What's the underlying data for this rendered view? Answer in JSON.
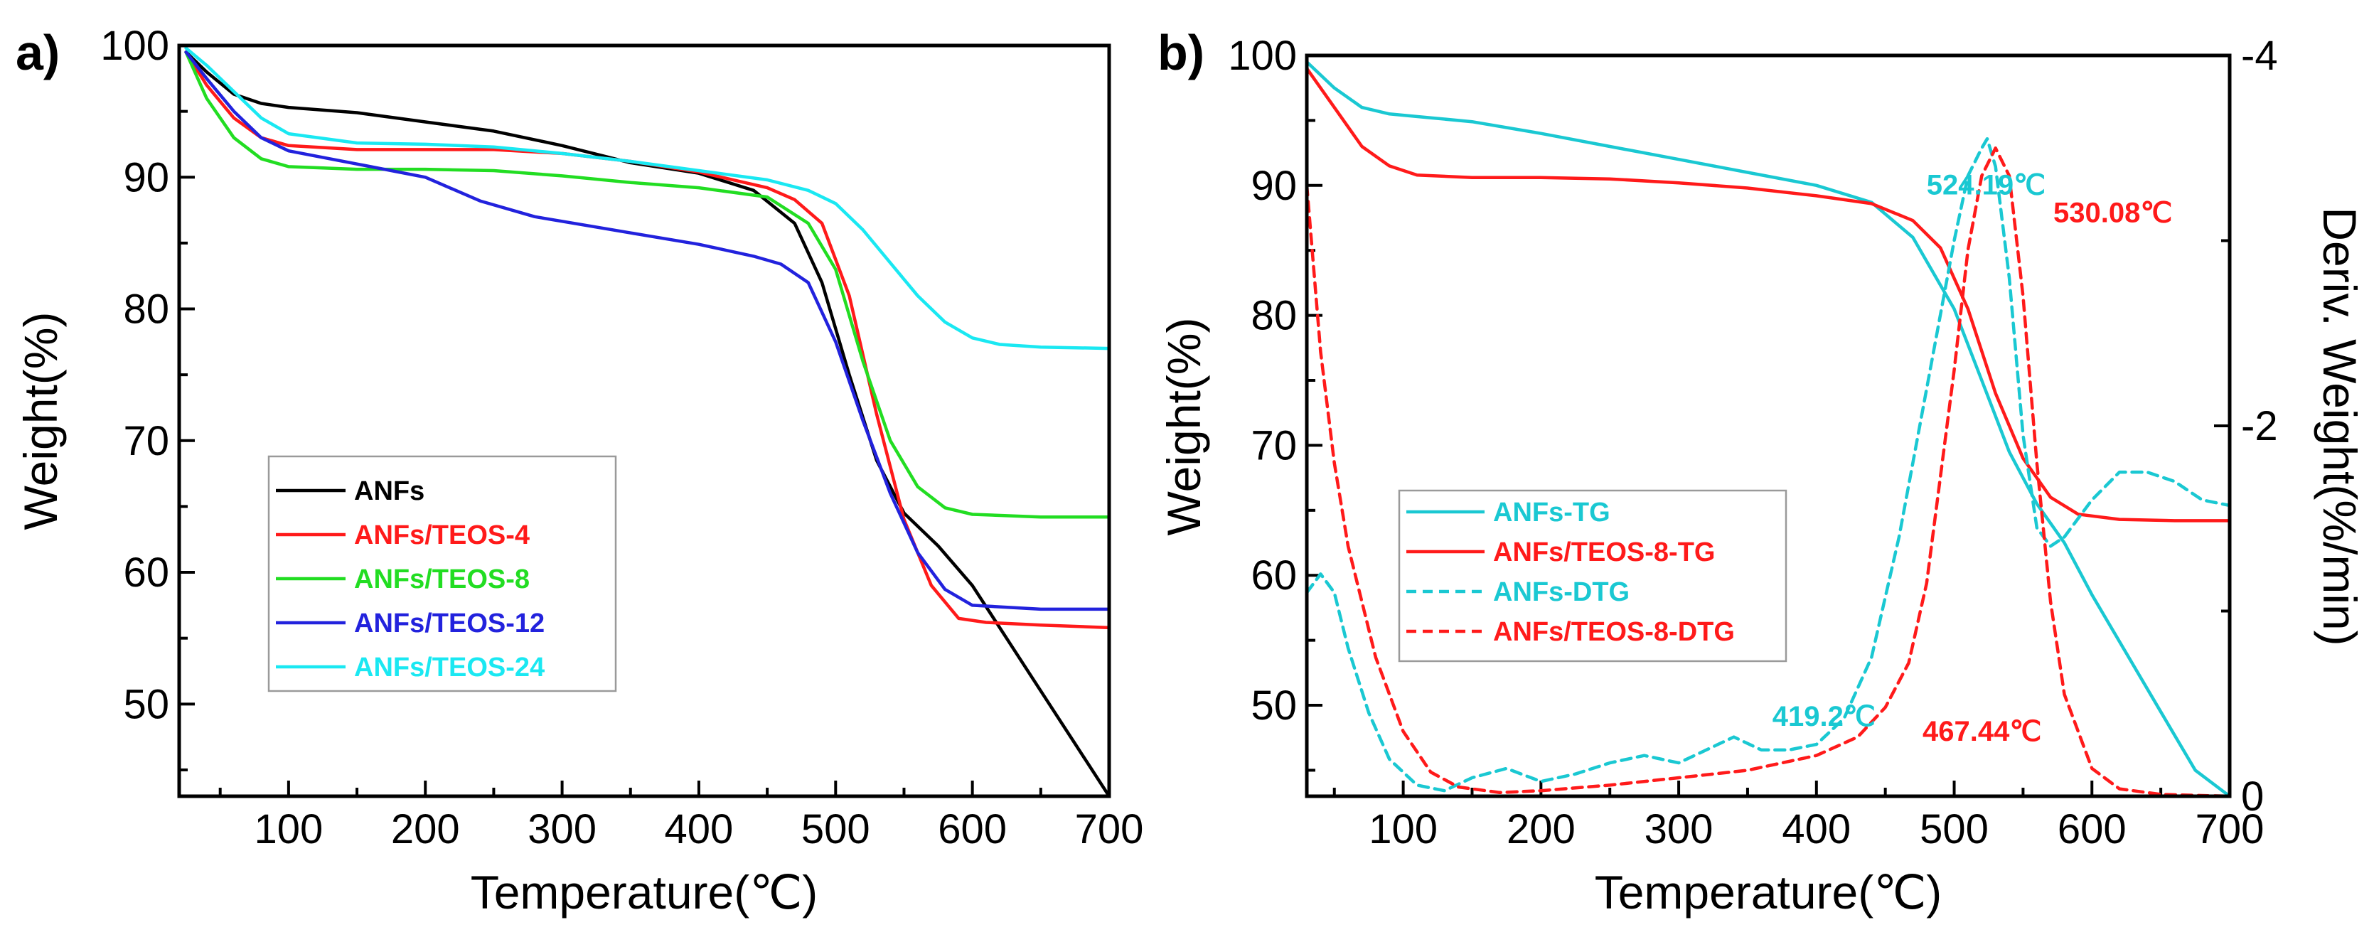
{
  "chart_data": [
    {
      "type": "line",
      "panel_label": "a)",
      "xlabel": "Temperature(℃)",
      "ylabel": "Weight(%)",
      "xlim": [
        20,
        700
      ],
      "ylim": [
        43,
        100
      ],
      "x_ticks": [
        100,
        200,
        300,
        400,
        500,
        600,
        700
      ],
      "y_ticks": [
        50,
        60,
        70,
        80,
        90,
        100
      ],
      "legend": {
        "position": "bottom-left"
      },
      "series": [
        {
          "name": "ANFs",
          "color": "#000000",
          "x": [
            25,
            40,
            60,
            80,
            100,
            150,
            200,
            250,
            300,
            350,
            400,
            440,
            470,
            490,
            510,
            530,
            550,
            575,
            600,
            625,
            650,
            675,
            700
          ],
          "y": [
            99.5,
            98,
            96.3,
            95.6,
            95.3,
            94.9,
            94.2,
            93.5,
            92.4,
            91.1,
            90.3,
            89,
            86.5,
            82,
            75,
            68.5,
            64.5,
            62,
            59,
            55,
            51,
            47,
            43
          ]
        },
        {
          "name": "ANFs/TEOS-4",
          "color": "#ff1a1a",
          "x": [
            25,
            40,
            60,
            80,
            100,
            150,
            200,
            250,
            300,
            350,
            400,
            450,
            470,
            490,
            510,
            530,
            550,
            570,
            590,
            610,
            650,
            700
          ],
          "y": [
            99.5,
            97,
            94.5,
            93,
            92.4,
            92.1,
            92.1,
            92.1,
            91.8,
            91.2,
            90.4,
            89.2,
            88.3,
            86.5,
            81,
            72,
            64,
            59,
            56.5,
            56.2,
            56,
            55.8
          ]
        },
        {
          "name": "ANFs/TEOS-8",
          "color": "#22dd22",
          "x": [
            25,
            40,
            60,
            80,
            100,
            150,
            200,
            250,
            300,
            350,
            400,
            450,
            480,
            500,
            520,
            540,
            560,
            580,
            600,
            650,
            700
          ],
          "y": [
            99.5,
            96,
            93,
            91.4,
            90.8,
            90.6,
            90.6,
            90.5,
            90.1,
            89.6,
            89.2,
            88.5,
            86.5,
            83,
            76,
            70,
            66.5,
            64.9,
            64.4,
            64.2,
            64.2
          ]
        },
        {
          "name": "ANFs/TEOS-12",
          "color": "#2222dd",
          "x": [
            25,
            40,
            60,
            80,
            100,
            150,
            200,
            240,
            280,
            320,
            360,
            400,
            440,
            460,
            480,
            500,
            520,
            540,
            560,
            580,
            600,
            650,
            700
          ],
          "y": [
            99.5,
            97.5,
            95,
            93,
            92,
            91,
            90,
            88.2,
            87,
            86.3,
            85.6,
            84.9,
            84,
            83.4,
            82,
            77.5,
            71.5,
            66,
            61.5,
            58.7,
            57.5,
            57.2,
            57.2
          ]
        },
        {
          "name": "ANFs/TEOS-24",
          "color": "#1ae8f2",
          "x": [
            25,
            40,
            60,
            80,
            100,
            150,
            200,
            250,
            300,
            350,
            400,
            450,
            480,
            500,
            520,
            540,
            560,
            580,
            600,
            620,
            650,
            700
          ],
          "y": [
            99.8,
            98.5,
            96.5,
            94.5,
            93.3,
            92.6,
            92.5,
            92.3,
            91.8,
            91.2,
            90.5,
            89.8,
            89,
            88,
            86,
            83.5,
            81,
            79,
            77.8,
            77.3,
            77.1,
            77
          ]
        }
      ]
    },
    {
      "type": "line",
      "panel_label": "b)",
      "xlabel": "Temperature(℃)",
      "ylabel": "Weight(%)",
      "y2label": "Deriv. Weight(%/min)",
      "xlim": [
        30,
        700
      ],
      "ylim": [
        43,
        100
      ],
      "y2lim": [
        0,
        -4
      ],
      "x_ticks": [
        100,
        200,
        300,
        400,
        500,
        600,
        700
      ],
      "y_ticks": [
        50,
        60,
        70,
        80,
        90,
        100
      ],
      "y2_ticks": [
        0,
        -2,
        -4
      ],
      "legend": {
        "position": "left-middle"
      },
      "series": [
        {
          "name": "ANFs-TG",
          "color": "#1ac8d2",
          "axis": "left",
          "style": "solid",
          "x": [
            30,
            50,
            70,
            90,
            120,
            150,
            200,
            250,
            300,
            350,
            400,
            440,
            470,
            500,
            520,
            540,
            560,
            580,
            600,
            625,
            650,
            675,
            700
          ],
          "y": [
            99.5,
            97.5,
            96,
            95.5,
            95.2,
            94.9,
            94,
            93,
            92,
            91,
            90,
            88.7,
            86,
            80.5,
            75,
            69.5,
            65.5,
            62.5,
            58.5,
            54,
            49.5,
            45,
            43
          ]
        },
        {
          "name": "ANFs/TEOS-8-TG",
          "color": "#ff1a1a",
          "axis": "left",
          "style": "solid",
          "x": [
            30,
            50,
            70,
            90,
            110,
            150,
            200,
            250,
            300,
            350,
            400,
            440,
            470,
            490,
            510,
            530,
            550,
            570,
            590,
            620,
            660,
            700
          ],
          "y": [
            99,
            96,
            93,
            91.5,
            90.8,
            90.6,
            90.6,
            90.5,
            90.2,
            89.8,
            89.2,
            88.6,
            87.3,
            85.2,
            80.5,
            74,
            69,
            66,
            64.7,
            64.3,
            64.2,
            64.2
          ]
        },
        {
          "name": "ANFs-DTG",
          "color": "#1ac8d2",
          "axis": "right",
          "style": "dashed",
          "x": [
            30,
            40,
            50,
            60,
            75,
            90,
            110,
            130,
            150,
            175,
            200,
            225,
            250,
            275,
            300,
            320,
            340,
            360,
            380,
            400,
            420,
            440,
            460,
            480,
            500,
            510,
            520,
            524,
            530,
            540,
            550,
            560,
            570,
            580,
            600,
            620,
            640,
            660,
            680,
            700
          ],
          "y": [
            -1.1,
            -1.2,
            -1.1,
            -0.8,
            -0.45,
            -0.2,
            -0.06,
            -0.03,
            -0.1,
            -0.15,
            -0.08,
            -0.12,
            -0.18,
            -0.22,
            -0.18,
            -0.25,
            -0.32,
            -0.25,
            -0.25,
            -0.28,
            -0.42,
            -0.75,
            -1.4,
            -2.2,
            -3.0,
            -3.35,
            -3.5,
            -3.55,
            -3.4,
            -2.8,
            -1.95,
            -1.45,
            -1.35,
            -1.4,
            -1.6,
            -1.75,
            -1.75,
            -1.7,
            -1.6,
            -1.57
          ]
        },
        {
          "name": "ANFs/TEOS-8-DTG",
          "color": "#ff1a1a",
          "axis": "right",
          "style": "dashed",
          "x": [
            30,
            40,
            50,
            60,
            80,
            100,
            120,
            140,
            170,
            200,
            250,
            300,
            350,
            400,
            430,
            450,
            467,
            480,
            500,
            510,
            520,
            530,
            540,
            550,
            560,
            570,
            580,
            600,
            620,
            650,
            700
          ],
          "y": [
            -3.3,
            -2.4,
            -1.8,
            -1.35,
            -0.75,
            -0.35,
            -0.13,
            -0.05,
            -0.02,
            -0.03,
            -0.06,
            -0.1,
            -0.14,
            -0.22,
            -0.32,
            -0.48,
            -0.72,
            -1.15,
            -2.3,
            -2.95,
            -3.35,
            -3.5,
            -3.35,
            -2.7,
            -1.8,
            -1.05,
            -0.55,
            -0.15,
            -0.04,
            -0.01,
            0
          ]
        }
      ],
      "annotations": [
        {
          "text": "524.19℃",
          "color": "#1ac8d2",
          "x": 480,
          "y2": -3.25
        },
        {
          "text": "530.08℃",
          "color": "#ff1a1a",
          "x": 572,
          "y2": -3.1
        },
        {
          "text": "419.2℃",
          "color": "#1ac8d2",
          "x": 368,
          "y2": -0.38
        },
        {
          "text": "467.44℃",
          "color": "#ff1a1a",
          "x": 477,
          "y2": -0.3
        }
      ]
    }
  ]
}
